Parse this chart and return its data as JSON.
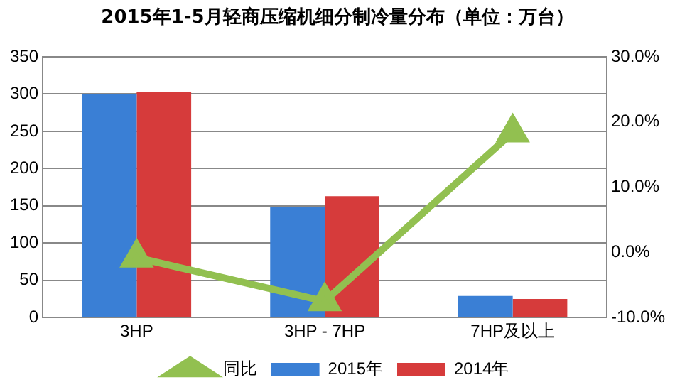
{
  "chart_data": {
    "type": "bar",
    "title": "2015年1-5月轻商压缩机细分制冷量分布（单位：万台）",
    "categories": [
      "3HP",
      "3HP - 7HP",
      "7HP及以上"
    ],
    "series": [
      {
        "name": "2015年",
        "color": "#3a7fd5",
        "values": [
          300,
          148,
          29
        ]
      },
      {
        "name": "2014年",
        "color": "#d63b3b",
        "values": [
          303,
          163,
          25
        ]
      },
      {
        "name": "同比",
        "type": "line",
        "axis": "y2",
        "color": "#92c050",
        "marker": "triangle",
        "values": [
          -0.8,
          -7.5,
          18.4
        ]
      }
    ],
    "ylim": [
      0,
      350
    ],
    "yticks": [
      0,
      50,
      100,
      150,
      200,
      250,
      300,
      350
    ],
    "y2lim": [
      -10,
      30
    ],
    "y2ticks": [
      {
        "value": -10,
        "label": "-10.0%"
      },
      {
        "value": 0,
        "label": "0.0%"
      },
      {
        "value": 10,
        "label": "10.0%"
      },
      {
        "value": 20,
        "label": "20.0%"
      },
      {
        "value": 30,
        "label": "30.0%"
      }
    ],
    "grid": "y",
    "legend": "bottom"
  }
}
